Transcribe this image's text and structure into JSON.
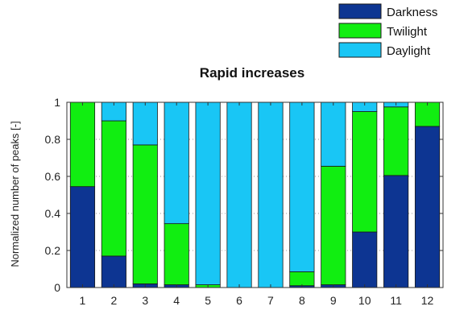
{
  "chart_data": {
    "type": "bar",
    "stacked": true,
    "title": "Rapid increases",
    "xlabel": "",
    "ylabel": "Normalized number of peaks [-]",
    "categories": [
      "1",
      "2",
      "3",
      "4",
      "5",
      "6",
      "7",
      "8",
      "9",
      "10",
      "11",
      "12"
    ],
    "ylim": [
      0,
      1
    ],
    "yticks": [
      "0",
      "0.2",
      "0.4",
      "0.6",
      "0.8",
      "1"
    ],
    "grid": true,
    "legend_position": "top-right",
    "series": [
      {
        "name": "Darkness",
        "color": "#0d3592",
        "values": [
          0.545,
          0.17,
          0.02,
          0.015,
          0.0,
          0.0,
          0.0,
          0.01,
          0.015,
          0.3,
          0.605,
          0.87
        ]
      },
      {
        "name": "Twilight",
        "color": "#11ee11",
        "values": [
          0.455,
          0.73,
          0.75,
          0.33,
          0.015,
          0.0,
          0.0,
          0.075,
          0.64,
          0.65,
          0.37,
          0.13
        ]
      },
      {
        "name": "Daylight",
        "color": "#19c6f5",
        "values": [
          0.0,
          0.1,
          0.23,
          0.655,
          0.985,
          1.0,
          1.0,
          0.915,
          0.345,
          0.05,
          0.025,
          0.0
        ]
      }
    ],
    "legend_order": [
      "Darkness",
      "Twilight",
      "Daylight"
    ]
  }
}
